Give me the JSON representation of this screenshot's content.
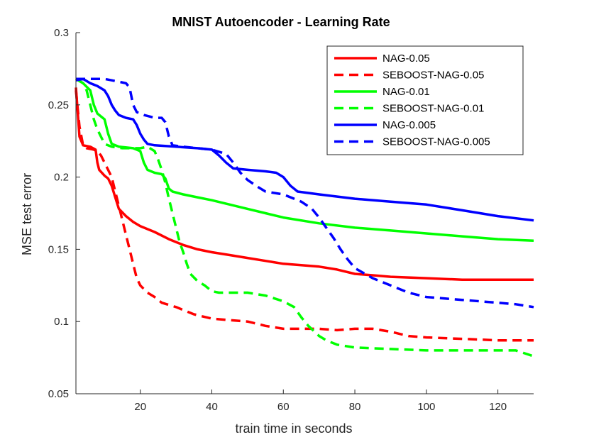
{
  "chart_data": {
    "type": "line",
    "title": "MNIST Autoencoder - Learning Rate",
    "xlabel": "train time in seconds",
    "ylabel": "MSE test error",
    "xlim": [
      2,
      130
    ],
    "ylim": [
      0.05,
      0.3
    ],
    "xticks": [
      20,
      40,
      60,
      80,
      100,
      120
    ],
    "yticks": [
      0.05,
      0.1,
      0.15,
      0.2,
      0.25,
      0.3
    ],
    "xtick_labels": [
      "20",
      "40",
      "60",
      "80",
      "100",
      "120"
    ],
    "ytick_labels": [
      "0.05",
      "0.1",
      "0.15",
      "0.2",
      "0.25",
      "0.3"
    ],
    "grid": false,
    "legend_position": "top-right",
    "series": [
      {
        "name": "NAG-0.05",
        "color": "#ff0000",
        "dash": "solid",
        "points": [
          [
            2,
            0.262
          ],
          [
            2.5,
            0.245
          ],
          [
            3,
            0.228
          ],
          [
            4,
            0.222
          ],
          [
            6,
            0.221
          ],
          [
            7.5,
            0.219
          ],
          [
            8,
            0.21
          ],
          [
            8.5,
            0.205
          ],
          [
            10,
            0.201
          ],
          [
            11,
            0.199
          ],
          [
            12,
            0.194
          ],
          [
            13,
            0.186
          ],
          [
            14,
            0.178
          ],
          [
            16,
            0.173
          ],
          [
            18,
            0.169
          ],
          [
            20,
            0.166
          ],
          [
            24,
            0.162
          ],
          [
            28,
            0.157
          ],
          [
            32,
            0.153
          ],
          [
            36,
            0.15
          ],
          [
            40,
            0.148
          ],
          [
            45,
            0.146
          ],
          [
            50,
            0.144
          ],
          [
            55,
            0.142
          ],
          [
            60,
            0.14
          ],
          [
            65,
            0.139
          ],
          [
            70,
            0.138
          ],
          [
            75,
            0.136
          ],
          [
            80,
            0.133
          ],
          [
            85,
            0.132
          ],
          [
            90,
            0.131
          ],
          [
            100,
            0.13
          ],
          [
            110,
            0.129
          ],
          [
            120,
            0.129
          ],
          [
            130,
            0.129
          ]
        ]
      },
      {
        "name": "SEBOOST-NAG-0.05",
        "color": "#ff0000",
        "dash": "dashed",
        "points": [
          [
            2,
            0.26
          ],
          [
            3,
            0.235
          ],
          [
            4,
            0.222
          ],
          [
            5,
            0.22
          ],
          [
            7,
            0.219
          ],
          [
            8,
            0.218
          ],
          [
            9,
            0.215
          ],
          [
            10,
            0.21
          ],
          [
            12,
            0.2
          ],
          [
            13,
            0.19
          ],
          [
            14,
            0.18
          ],
          [
            15,
            0.17
          ],
          [
            16,
            0.16
          ],
          [
            17,
            0.15
          ],
          [
            18,
            0.14
          ],
          [
            19,
            0.13
          ],
          [
            20,
            0.125
          ],
          [
            22,
            0.12
          ],
          [
            24,
            0.117
          ],
          [
            26,
            0.113
          ],
          [
            30,
            0.11
          ],
          [
            35,
            0.105
          ],
          [
            40,
            0.102
          ],
          [
            45,
            0.101
          ],
          [
            50,
            0.1
          ],
          [
            55,
            0.097
          ],
          [
            60,
            0.095
          ],
          [
            70,
            0.095
          ],
          [
            75,
            0.094
          ],
          [
            80,
            0.095
          ],
          [
            85,
            0.095
          ],
          [
            90,
            0.093
          ],
          [
            95,
            0.09
          ],
          [
            100,
            0.089
          ],
          [
            110,
            0.088
          ],
          [
            120,
            0.087
          ],
          [
            130,
            0.087
          ]
        ]
      },
      {
        "name": "NAG-0.01",
        "color": "#00ff00",
        "dash": "solid",
        "points": [
          [
            2,
            0.268
          ],
          [
            4,
            0.265
          ],
          [
            6,
            0.26
          ],
          [
            7,
            0.25
          ],
          [
            8,
            0.244
          ],
          [
            9,
            0.242
          ],
          [
            10,
            0.24
          ],
          [
            11,
            0.23
          ],
          [
            12,
            0.223
          ],
          [
            14,
            0.221
          ],
          [
            18,
            0.22
          ],
          [
            20,
            0.218
          ],
          [
            21,
            0.21
          ],
          [
            22,
            0.205
          ],
          [
            24,
            0.203
          ],
          [
            26,
            0.202
          ],
          [
            27,
            0.199
          ],
          [
            28,
            0.192
          ],
          [
            29,
            0.19
          ],
          [
            32,
            0.188
          ],
          [
            36,
            0.186
          ],
          [
            40,
            0.184
          ],
          [
            45,
            0.181
          ],
          [
            50,
            0.178
          ],
          [
            55,
            0.175
          ],
          [
            60,
            0.172
          ],
          [
            70,
            0.168
          ],
          [
            80,
            0.165
          ],
          [
            90,
            0.163
          ],
          [
            100,
            0.161
          ],
          [
            110,
            0.159
          ],
          [
            120,
            0.157
          ],
          [
            130,
            0.156
          ]
        ]
      },
      {
        "name": "SEBOOST-NAG-0.01",
        "color": "#00ff00",
        "dash": "dashed",
        "points": [
          [
            2,
            0.268
          ],
          [
            4,
            0.265
          ],
          [
            5,
            0.26
          ],
          [
            6,
            0.25
          ],
          [
            7,
            0.24
          ],
          [
            8,
            0.233
          ],
          [
            9,
            0.228
          ],
          [
            10,
            0.223
          ],
          [
            12,
            0.221
          ],
          [
            15,
            0.22
          ],
          [
            18,
            0.22
          ],
          [
            20,
            0.22
          ],
          [
            22,
            0.221
          ],
          [
            24,
            0.218
          ],
          [
            25,
            0.212
          ],
          [
            26,
            0.205
          ],
          [
            27,
            0.196
          ],
          [
            28,
            0.185
          ],
          [
            29,
            0.175
          ],
          [
            30,
            0.165
          ],
          [
            31,
            0.155
          ],
          [
            32,
            0.148
          ],
          [
            33,
            0.14
          ],
          [
            34,
            0.133
          ],
          [
            36,
            0.128
          ],
          [
            38,
            0.125
          ],
          [
            40,
            0.121
          ],
          [
            42,
            0.12
          ],
          [
            50,
            0.12
          ],
          [
            55,
            0.118
          ],
          [
            60,
            0.114
          ],
          [
            63,
            0.11
          ],
          [
            65,
            0.103
          ],
          [
            67,
            0.097
          ],
          [
            70,
            0.09
          ],
          [
            72,
            0.087
          ],
          [
            75,
            0.084
          ],
          [
            80,
            0.082
          ],
          [
            90,
            0.081
          ],
          [
            100,
            0.08
          ],
          [
            110,
            0.08
          ],
          [
            120,
            0.08
          ],
          [
            125,
            0.08
          ],
          [
            130,
            0.076
          ]
        ]
      },
      {
        "name": "NAG-0.005",
        "color": "#0000ff",
        "dash": "solid",
        "points": [
          [
            2,
            0.267
          ],
          [
            4,
            0.268
          ],
          [
            6,
            0.265
          ],
          [
            8,
            0.263
          ],
          [
            10,
            0.26
          ],
          [
            11,
            0.256
          ],
          [
            12,
            0.25
          ],
          [
            13,
            0.246
          ],
          [
            14,
            0.243
          ],
          [
            16,
            0.241
          ],
          [
            18,
            0.24
          ],
          [
            19,
            0.236
          ],
          [
            20,
            0.23
          ],
          [
            21,
            0.226
          ],
          [
            22,
            0.223
          ],
          [
            24,
            0.222
          ],
          [
            30,
            0.221
          ],
          [
            36,
            0.22
          ],
          [
            40,
            0.219
          ],
          [
            42,
            0.215
          ],
          [
            44,
            0.21
          ],
          [
            46,
            0.206
          ],
          [
            50,
            0.205
          ],
          [
            55,
            0.204
          ],
          [
            58,
            0.203
          ],
          [
            60,
            0.2
          ],
          [
            62,
            0.194
          ],
          [
            64,
            0.19
          ],
          [
            70,
            0.188
          ],
          [
            80,
            0.185
          ],
          [
            90,
            0.183
          ],
          [
            100,
            0.181
          ],
          [
            110,
            0.177
          ],
          [
            120,
            0.173
          ],
          [
            130,
            0.17
          ]
        ]
      },
      {
        "name": "SEBOOST-NAG-0.005",
        "color": "#0000ff",
        "dash": "dashed",
        "points": [
          [
            2,
            0.268
          ],
          [
            6,
            0.268
          ],
          [
            10,
            0.268
          ],
          [
            12,
            0.267
          ],
          [
            14,
            0.266
          ],
          [
            16,
            0.265
          ],
          [
            17,
            0.262
          ],
          [
            18,
            0.25
          ],
          [
            19,
            0.245
          ],
          [
            21,
            0.243
          ],
          [
            24,
            0.241
          ],
          [
            26,
            0.241
          ],
          [
            27,
            0.238
          ],
          [
            28,
            0.228
          ],
          [
            29,
            0.222
          ],
          [
            32,
            0.221
          ],
          [
            36,
            0.22
          ],
          [
            40,
            0.219
          ],
          [
            44,
            0.216
          ],
          [
            46,
            0.21
          ],
          [
            48,
            0.203
          ],
          [
            50,
            0.198
          ],
          [
            53,
            0.193
          ],
          [
            55,
            0.19
          ],
          [
            60,
            0.188
          ],
          [
            65,
            0.183
          ],
          [
            68,
            0.178
          ],
          [
            70,
            0.172
          ],
          [
            72,
            0.165
          ],
          [
            74,
            0.158
          ],
          [
            76,
            0.15
          ],
          [
            78,
            0.143
          ],
          [
            80,
            0.137
          ],
          [
            85,
            0.13
          ],
          [
            90,
            0.125
          ],
          [
            95,
            0.12
          ],
          [
            100,
            0.117
          ],
          [
            110,
            0.115
          ],
          [
            120,
            0.113
          ],
          [
            125,
            0.112
          ],
          [
            130,
            0.11
          ]
        ]
      }
    ]
  }
}
